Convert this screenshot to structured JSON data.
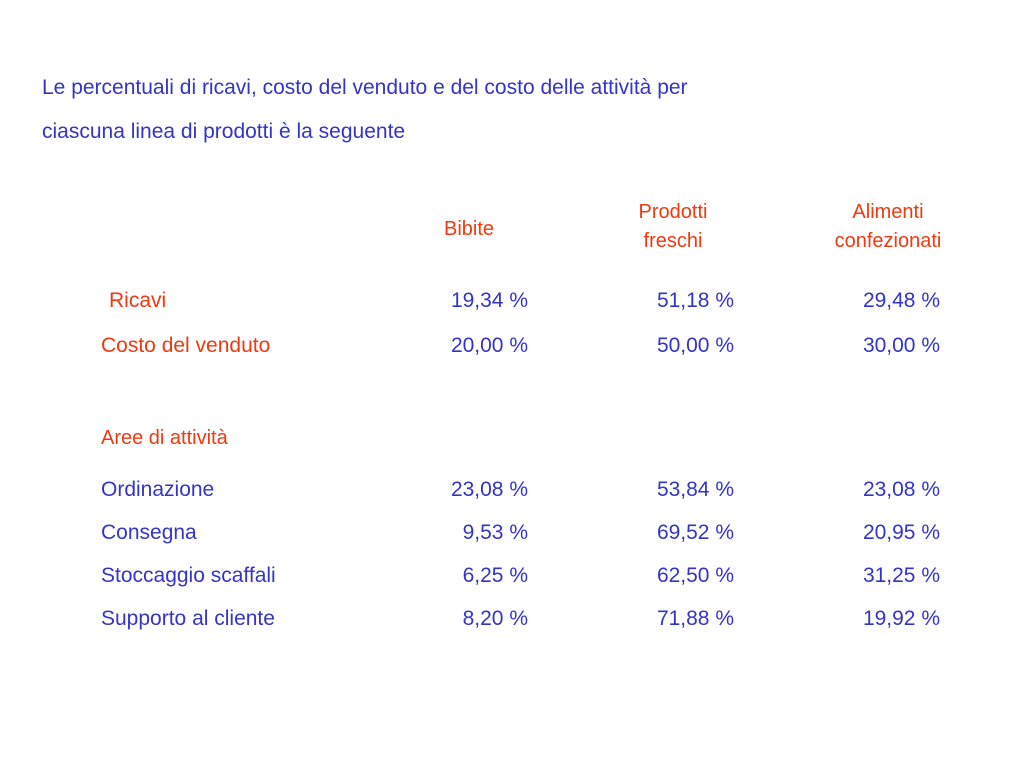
{
  "title": {
    "line1": "Le percentuali di ricavi, costo del venduto e del costo delle attività per",
    "line2": "ciascuna linea di prodotti è la seguente"
  },
  "columns": {
    "bibite": "Bibite",
    "prodotti_freschi_line1": "Prodotti",
    "prodotti_freschi_line2": "freschi",
    "alimenti_line1": "Alimenti",
    "alimenti_line2": "confezionati"
  },
  "rows": {
    "ricavi": {
      "label": "Ricavi",
      "bibite": "19,34 %",
      "freschi": "51,18 %",
      "confezionati": "29,48 %"
    },
    "costo_venduto": {
      "label": "Costo del venduto",
      "bibite": "20,00 %",
      "freschi": "50,00 %",
      "confezionati": "30,00 %"
    },
    "aree_header": "Aree di attività",
    "ordinazione": {
      "label": "Ordinazione",
      "bibite": "23,08 %",
      "freschi": "53,84 %",
      "confezionati": "23,08 %"
    },
    "consegna": {
      "label": "Consegna",
      "bibite": "9,53 %",
      "freschi": "69,52 %",
      "confezionati": "20,95 %"
    },
    "stoccaggio": {
      "label": "Stoccaggio scaffali",
      "bibite": "6,25 %",
      "freschi": "62,50 %",
      "confezionati": "31,25 %"
    },
    "supporto": {
      "label": "Supporto al cliente",
      "bibite": "8,20 %",
      "freschi": "71,88 %",
      "confezionati": "19,92 %"
    }
  }
}
